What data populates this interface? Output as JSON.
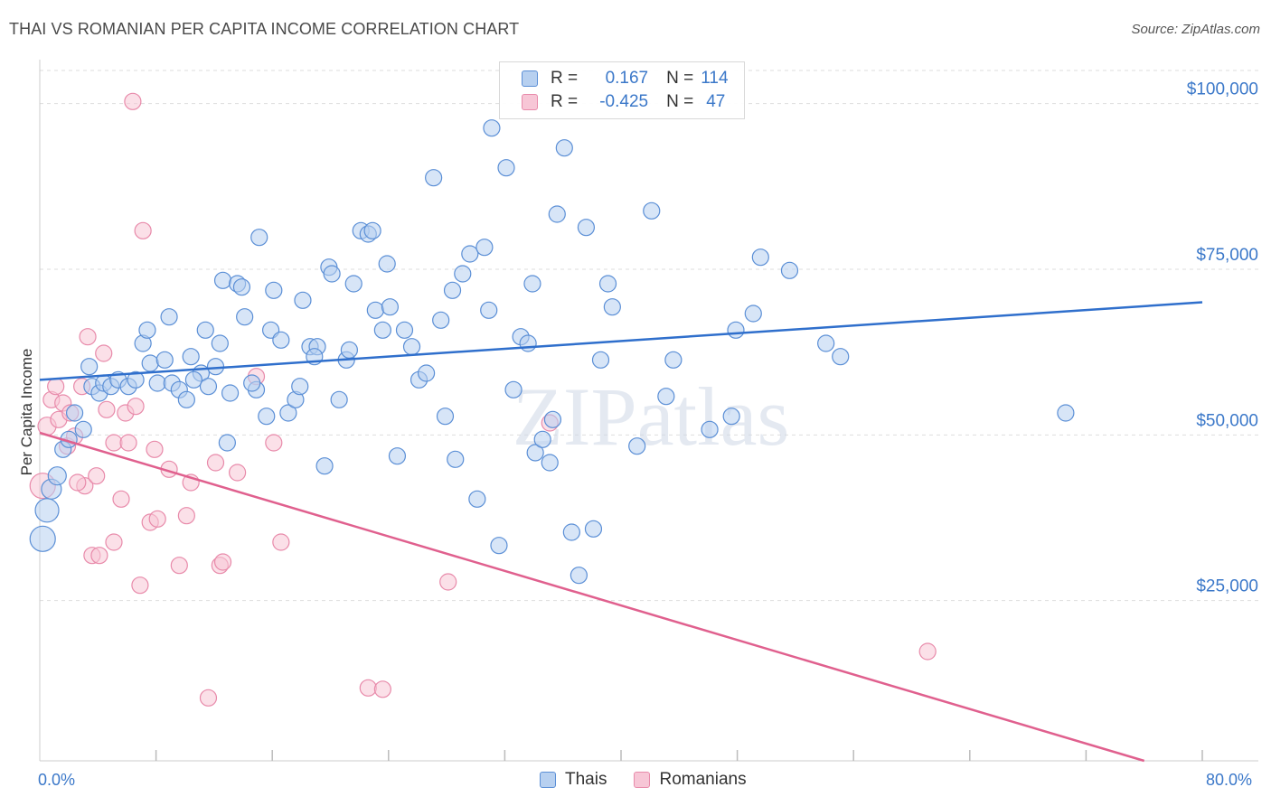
{
  "title": "THAI VS ROMANIAN PER CAPITA INCOME CORRELATION CHART",
  "source": "Source: ZipAtlas.com",
  "watermark": "ZIPatlas",
  "legend": {
    "rows": [
      {
        "r_label": "R =",
        "r_value": "0.167",
        "n_label": "N =",
        "n_value": "114"
      },
      {
        "r_label": "R =",
        "r_value": "-0.425",
        "n_label": "N =",
        "n_value": "47"
      }
    ]
  },
  "bottom_legend": [
    "Thais",
    "Romanians"
  ],
  "x_min_label": "0.0%",
  "x_max_label": "80.0%",
  "colors": {
    "thai_fill": "#b7d0f0",
    "thai_stroke": "#5b8fd6",
    "thai_line": "#2f6fcc",
    "rom_fill": "#f7c6d6",
    "rom_stroke": "#e88aaa",
    "rom_line": "#e0608e",
    "tick_label": "#3b78c9",
    "grid": "#dddddd"
  },
  "chart_data": {
    "type": "scatter",
    "title": "THAI VS ROMANIAN PER CAPITA INCOME CORRELATION CHART",
    "xlabel": "",
    "ylabel": "Per Capita Income",
    "xlim": [
      0,
      80
    ],
    "ylim": [
      0,
      105000
    ],
    "y_ticks": [
      25000,
      50000,
      75000,
      100000
    ],
    "y_tick_labels": [
      "$25,000",
      "$50,000",
      "$75,000",
      "$100,000"
    ],
    "x_tick_labels": [
      "0.0%",
      "80.0%"
    ],
    "grid": true,
    "legend_position": "top-center",
    "series": [
      {
        "name": "Thais",
        "r": 0.167,
        "n": 114,
        "trend": [
          [
            0,
            57500
          ],
          [
            80,
            69200
          ]
        ],
        "points": [
          [
            0.2,
            33500,
            14
          ],
          [
            0.5,
            37800,
            13
          ],
          [
            0.8,
            41000,
            11
          ],
          [
            1.2,
            43000,
            10
          ],
          [
            1.6,
            47000,
            9
          ],
          [
            2.0,
            48500,
            9
          ],
          [
            2.4,
            52500,
            9
          ],
          [
            3.0,
            50000,
            9
          ],
          [
            3.4,
            59500,
            9
          ],
          [
            3.6,
            56500,
            9
          ],
          [
            4.1,
            55500,
            9
          ],
          [
            4.4,
            57000,
            9
          ],
          [
            4.9,
            56500,
            9
          ],
          [
            5.4,
            57500,
            9
          ],
          [
            6.1,
            56500,
            9
          ],
          [
            6.6,
            57500,
            9
          ],
          [
            7.1,
            63000,
            9
          ],
          [
            7.6,
            60000,
            9
          ],
          [
            7.4,
            65000,
            9
          ],
          [
            8.1,
            57000,
            9
          ],
          [
            8.6,
            60500,
            9
          ],
          [
            8.9,
            67000,
            9
          ],
          [
            9.1,
            57000,
            9
          ],
          [
            9.6,
            56000,
            9
          ],
          [
            10.1,
            54500,
            9
          ],
          [
            10.4,
            61000,
            9
          ],
          [
            11.1,
            58500,
            9
          ],
          [
            10.6,
            57500,
            9
          ],
          [
            11.6,
            56500,
            9
          ],
          [
            11.4,
            65000,
            9
          ],
          [
            12.1,
            59500,
            9
          ],
          [
            12.4,
            63000,
            9
          ],
          [
            12.6,
            72500,
            9
          ],
          [
            13.1,
            55500,
            9
          ],
          [
            13.6,
            72000,
            9
          ],
          [
            13.9,
            71500,
            9
          ],
          [
            14.1,
            67000,
            9
          ],
          [
            14.9,
            56000,
            9
          ],
          [
            14.6,
            57000,
            9
          ],
          [
            15.1,
            79000,
            9
          ],
          [
            15.6,
            52000,
            9
          ],
          [
            15.9,
            65000,
            9
          ],
          [
            16.1,
            71000,
            9
          ],
          [
            16.6,
            63500,
            9
          ],
          [
            17.1,
            52500,
            9
          ],
          [
            17.6,
            54500,
            9
          ],
          [
            17.9,
            56500,
            9
          ],
          [
            18.1,
            69500,
            9
          ],
          [
            18.6,
            62500,
            9
          ],
          [
            19.1,
            62500,
            9
          ],
          [
            19.6,
            44500,
            9
          ],
          [
            19.9,
            74500,
            9
          ],
          [
            20.1,
            73500,
            9
          ],
          [
            20.6,
            54500,
            9
          ],
          [
            21.1,
            60500,
            9
          ],
          [
            21.3,
            62000,
            9
          ],
          [
            21.6,
            72000,
            9
          ],
          [
            22.1,
            80000,
            9
          ],
          [
            22.6,
            79500,
            9
          ],
          [
            22.9,
            80000,
            9
          ],
          [
            23.1,
            68000,
            9
          ],
          [
            23.6,
            65000,
            9
          ],
          [
            23.9,
            75000,
            9
          ],
          [
            24.1,
            68500,
            9
          ],
          [
            24.6,
            46000,
            9
          ],
          [
            25.1,
            65000,
            9
          ],
          [
            25.6,
            62500,
            9
          ],
          [
            26.1,
            57500,
            9
          ],
          [
            26.6,
            58500,
            9
          ],
          [
            27.1,
            88000,
            9
          ],
          [
            27.6,
            66500,
            9
          ],
          [
            27.9,
            52000,
            9
          ],
          [
            28.4,
            71000,
            9
          ],
          [
            28.6,
            45500,
            9
          ],
          [
            29.1,
            73500,
            9
          ],
          [
            29.6,
            76500,
            9
          ],
          [
            30.1,
            39500,
            9
          ],
          [
            30.6,
            77500,
            9
          ],
          [
            30.9,
            68000,
            9
          ],
          [
            31.1,
            95500,
            9
          ],
          [
            31.6,
            32500,
            9
          ],
          [
            32.1,
            89500,
            9
          ],
          [
            32.6,
            56000,
            9
          ],
          [
            33.1,
            64000,
            9
          ],
          [
            33.6,
            63000,
            9
          ],
          [
            33.9,
            72000,
            9
          ],
          [
            34.1,
            46500,
            9
          ],
          [
            34.6,
            48500,
            9
          ],
          [
            35.1,
            45000,
            9
          ],
          [
            35.3,
            51500,
            9
          ],
          [
            35.6,
            82500,
            9
          ],
          [
            36.1,
            92500,
            9
          ],
          [
            36.6,
            34500,
            9
          ],
          [
            37.1,
            28000,
            9
          ],
          [
            37.6,
            80500,
            9
          ],
          [
            38.1,
            35000,
            9
          ],
          [
            38.6,
            60500,
            9
          ],
          [
            39.1,
            72000,
            9
          ],
          [
            39.4,
            68500,
            9
          ],
          [
            41.1,
            47500,
            9
          ],
          [
            43.6,
            60500,
            9
          ],
          [
            46.1,
            50000,
            9
          ],
          [
            47.6,
            52000,
            9
          ],
          [
            47.9,
            65000,
            9
          ],
          [
            49.1,
            67500,
            9
          ],
          [
            49.6,
            76000,
            9
          ],
          [
            51.6,
            74000,
            9
          ],
          [
            54.1,
            63000,
            9
          ],
          [
            55.1,
            61000,
            9
          ],
          [
            70.6,
            52500,
            9
          ],
          [
            42.1,
            83000,
            9
          ],
          [
            43.1,
            55000,
            9
          ],
          [
            18.9,
            61000,
            9
          ],
          [
            12.9,
            48000,
            9
          ]
        ]
      },
      {
        "name": "Romanians",
        "r": -0.425,
        "n": 47,
        "trend": [
          [
            0,
            49500
          ],
          [
            76,
            0
          ]
        ],
        "points": [
          [
            0.2,
            41500,
            14
          ],
          [
            0.5,
            50500,
            10
          ],
          [
            0.8,
            54500,
            9
          ],
          [
            1.1,
            56500,
            9
          ],
          [
            1.3,
            51500,
            9
          ],
          [
            1.6,
            54000,
            9
          ],
          [
            1.9,
            47500,
            9
          ],
          [
            2.1,
            52500,
            9
          ],
          [
            2.4,
            49000,
            9
          ],
          [
            2.9,
            56500,
            9
          ],
          [
            3.1,
            41500,
            9
          ],
          [
            3.3,
            64000,
            9
          ],
          [
            3.6,
            31000,
            9
          ],
          [
            3.9,
            43000,
            9
          ],
          [
            4.1,
            31000,
            9
          ],
          [
            4.4,
            61500,
            9
          ],
          [
            4.6,
            53000,
            9
          ],
          [
            5.1,
            33000,
            9
          ],
          [
            5.1,
            48000,
            9
          ],
          [
            5.6,
            39500,
            9
          ],
          [
            5.9,
            52500,
            9
          ],
          [
            6.1,
            48000,
            9
          ],
          [
            6.6,
            53500,
            9
          ],
          [
            6.9,
            26500,
            9
          ],
          [
            7.1,
            80000,
            9
          ],
          [
            7.6,
            36000,
            9
          ],
          [
            7.9,
            47000,
            9
          ],
          [
            8.1,
            36500,
            9
          ],
          [
            8.9,
            44000,
            9
          ],
          [
            9.6,
            29500,
            9
          ],
          [
            10.1,
            37000,
            9
          ],
          [
            10.4,
            42000,
            9
          ],
          [
            11.6,
            9500,
            9
          ],
          [
            12.1,
            45000,
            9
          ],
          [
            12.4,
            29500,
            9
          ],
          [
            12.6,
            30000,
            9
          ],
          [
            13.6,
            43500,
            9
          ],
          [
            14.9,
            58000,
            9
          ],
          [
            16.1,
            48000,
            9
          ],
          [
            16.6,
            33000,
            9
          ],
          [
            22.6,
            11000,
            9
          ],
          [
            23.6,
            10800,
            9
          ],
          [
            28.1,
            27000,
            9
          ],
          [
            35.1,
            51000,
            9
          ],
          [
            61.1,
            16500,
            9
          ],
          [
            6.4,
            99500,
            9
          ],
          [
            2.6,
            42000,
            9
          ]
        ]
      }
    ]
  }
}
